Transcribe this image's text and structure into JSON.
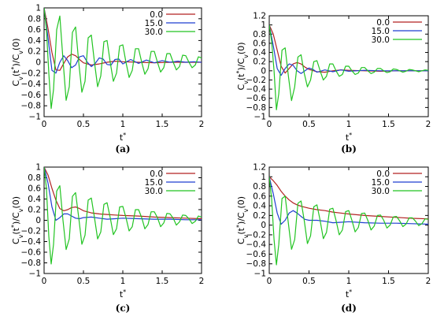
{
  "chart_data": [
    {
      "type": "line",
      "caption": "(a)",
      "xlabel": "t*",
      "ylabel": "Cv(t*)/Cv(0)",
      "xlim": [
        0,
        2
      ],
      "ylim": [
        -1,
        1
      ],
      "xticks": [
        "0",
        "0.5",
        "1",
        "1.5",
        "2"
      ],
      "yticks": [
        "−1",
        "−0.8",
        "−0.6",
        "−0.4",
        "−0.2",
        "0",
        "0.2",
        "0.4",
        "0.6",
        "0.8",
        "1"
      ],
      "xtick_values": [
        0,
        0.5,
        1,
        1.5,
        2
      ],
      "ytick_values": [
        -1,
        -0.8,
        -0.6,
        -0.4,
        -0.2,
        0,
        0.2,
        0.4,
        0.6,
        0.8,
        1
      ],
      "legend_position": "top-right",
      "series": [
        {
          "name": "0.0",
          "color": "#b22222",
          "x": [
            0,
            0.05,
            0.1,
            0.15,
            0.2,
            0.25,
            0.3,
            0.35,
            0.4,
            0.45,
            0.5,
            0.6,
            0.7,
            0.8,
            0.9,
            1.0,
            1.2,
            1.4,
            1.6,
            1.8,
            2.0
          ],
          "y": [
            1,
            0.62,
            0.18,
            -0.14,
            -0.15,
            -0.02,
            0.1,
            0.15,
            0.12,
            0.05,
            -0.01,
            -0.05,
            -0.03,
            0.0,
            0.02,
            0.01,
            0.0,
            -0.01,
            0.0,
            0.0,
            0.0
          ]
        },
        {
          "name": "15.0",
          "color": "#1f3fd0",
          "x": [
            0,
            0.05,
            0.1,
            0.15,
            0.2,
            0.25,
            0.3,
            0.35,
            0.4,
            0.45,
            0.5,
            0.55,
            0.6,
            0.65,
            0.7,
            0.75,
            0.8,
            0.85,
            0.9,
            0.95,
            1.0,
            1.1,
            1.2,
            1.3,
            1.4,
            1.5,
            1.6,
            1.7,
            1.8,
            1.9,
            2.0
          ],
          "y": [
            1,
            0.45,
            -0.15,
            -0.2,
            0.0,
            0.12,
            0.03,
            -0.1,
            -0.05,
            0.1,
            0.12,
            0.0,
            -0.08,
            -0.02,
            0.08,
            0.06,
            -0.04,
            -0.05,
            0.05,
            0.06,
            -0.03,
            0.05,
            -0.02,
            0.04,
            -0.01,
            0.03,
            0.0,
            0.02,
            0.0,
            0.01,
            0.0
          ]
        },
        {
          "name": "30.0",
          "color": "#22c422",
          "x": [
            0,
            0.03,
            0.06,
            0.09,
            0.12,
            0.16,
            0.2,
            0.24,
            0.28,
            0.32,
            0.36,
            0.4,
            0.44,
            0.48,
            0.52,
            0.56,
            0.6,
            0.64,
            0.68,
            0.72,
            0.76,
            0.8,
            0.84,
            0.88,
            0.92,
            0.96,
            1.0,
            1.04,
            1.08,
            1.12,
            1.16,
            1.2,
            1.24,
            1.28,
            1.32,
            1.36,
            1.4,
            1.44,
            1.48,
            1.52,
            1.56,
            1.6,
            1.64,
            1.68,
            1.72,
            1.76,
            1.8,
            1.84,
            1.88,
            1.92,
            1.96,
            2.0
          ],
          "y": [
            1,
            0.6,
            -0.2,
            -0.85,
            -0.5,
            0.6,
            0.85,
            0.05,
            -0.7,
            -0.45,
            0.55,
            0.65,
            0.0,
            -0.55,
            -0.35,
            0.45,
            0.5,
            0.0,
            -0.45,
            -0.25,
            0.38,
            0.4,
            0.0,
            -0.35,
            -0.2,
            0.3,
            0.32,
            0.0,
            -0.28,
            -0.15,
            0.25,
            0.25,
            0.0,
            -0.22,
            -0.12,
            0.2,
            0.2,
            0.0,
            -0.18,
            -0.1,
            0.16,
            0.16,
            0.0,
            -0.14,
            -0.08,
            0.13,
            0.12,
            0.0,
            -0.1,
            -0.05,
            0.1,
            0.08
          ]
        }
      ]
    },
    {
      "type": "line",
      "caption": "(b)",
      "xlabel": "t*",
      "ylabel": "Cv(t*)/Cv(0)",
      "xlim": [
        0,
        2
      ],
      "ylim": [
        -1,
        1.2
      ],
      "xticks": [
        "0",
        "0.5",
        "1",
        "1.5",
        "2"
      ],
      "yticks": [
        "−1",
        "−0.8",
        "−0.6",
        "−0.4",
        "−0.2",
        "0",
        "0.2",
        "0.4",
        "0.6",
        "0.8",
        "1",
        "1.2"
      ],
      "xtick_values": [
        0,
        0.5,
        1,
        1.5,
        2
      ],
      "ytick_values": [
        -1,
        -0.8,
        -0.6,
        -0.4,
        -0.2,
        0,
        0.2,
        0.4,
        0.6,
        0.8,
        1,
        1.2
      ],
      "legend_position": "top-right",
      "series": [
        {
          "name": "0.0",
          "color": "#b22222",
          "x": [
            0,
            0.05,
            0.1,
            0.15,
            0.2,
            0.25,
            0.3,
            0.35,
            0.4,
            0.45,
            0.5,
            0.6,
            0.7,
            0.8,
            0.9,
            1.0,
            1.2,
            1.4,
            1.6,
            1.8,
            2.0
          ],
          "y": [
            1,
            0.8,
            0.45,
            0.1,
            -0.05,
            0.05,
            0.15,
            0.18,
            0.15,
            0.08,
            0.03,
            -0.02,
            -0.03,
            0.0,
            0.02,
            0.01,
            0.0,
            -0.01,
            0.0,
            0.0,
            0.0
          ]
        },
        {
          "name": "15.0",
          "color": "#1f3fd0",
          "x": [
            0,
            0.05,
            0.1,
            0.15,
            0.2,
            0.25,
            0.3,
            0.35,
            0.4,
            0.45,
            0.5,
            0.55,
            0.6,
            0.7,
            0.8,
            0.9,
            1.0,
            1.2,
            1.4,
            1.6,
            1.8,
            2.0
          ],
          "y": [
            1,
            0.55,
            0.05,
            -0.1,
            0.05,
            0.15,
            0.12,
            0.0,
            -0.06,
            0.0,
            0.06,
            0.03,
            -0.03,
            0.02,
            -0.02,
            0.02,
            -0.01,
            0.01,
            0.0,
            0.0,
            0.0,
            0.0
          ]
        },
        {
          "name": "30.0",
          "color": "#22c422",
          "x": [
            0,
            0.03,
            0.06,
            0.09,
            0.12,
            0.16,
            0.2,
            0.24,
            0.28,
            0.32,
            0.36,
            0.4,
            0.44,
            0.48,
            0.52,
            0.56,
            0.6,
            0.64,
            0.68,
            0.72,
            0.76,
            0.8,
            0.84,
            0.88,
            0.92,
            0.96,
            1.0,
            1.04,
            1.08,
            1.12,
            1.16,
            1.2,
            1.24,
            1.28,
            1.32,
            1.36,
            1.4,
            1.44,
            1.48,
            1.52,
            1.56,
            1.6,
            1.64,
            1.68,
            1.72,
            1.76,
            1.8,
            1.84,
            1.88,
            1.92,
            1.96,
            2.0
          ],
          "y": [
            1,
            0.65,
            0.0,
            -0.85,
            -0.5,
            0.45,
            0.5,
            -0.1,
            -0.65,
            -0.35,
            0.3,
            0.35,
            -0.05,
            -0.35,
            -0.2,
            0.2,
            0.22,
            0.0,
            -0.2,
            -0.12,
            0.15,
            0.15,
            0.0,
            -0.12,
            -0.08,
            0.1,
            0.1,
            0.0,
            -0.08,
            -0.05,
            0.07,
            0.07,
            0.0,
            -0.06,
            -0.03,
            0.05,
            0.05,
            0.0,
            -0.04,
            -0.02,
            0.04,
            0.03,
            0.0,
            -0.03,
            -0.01,
            0.03,
            0.02,
            0.0,
            -0.02,
            0.0,
            0.02,
            0.01
          ]
        }
      ]
    },
    {
      "type": "line",
      "caption": "(c)",
      "xlabel": "t*",
      "ylabel": "Cv(t*)/Cv(0)",
      "xlim": [
        0,
        2
      ],
      "ylim": [
        -1,
        1
      ],
      "xticks": [
        "0",
        "0.5",
        "1",
        "1.5",
        "2"
      ],
      "yticks": [
        "−1",
        "−0.8",
        "−0.6",
        "−0.4",
        "−0.2",
        "0",
        "0.2",
        "0.4",
        "0.6",
        "0.8",
        "1"
      ],
      "xtick_values": [
        0,
        0.5,
        1,
        1.5,
        2
      ],
      "ytick_values": [
        -1,
        -0.8,
        -0.6,
        -0.4,
        -0.2,
        0,
        0.2,
        0.4,
        0.6,
        0.8,
        1
      ],
      "legend_position": "top-right",
      "series": [
        {
          "name": "0.0",
          "color": "#b22222",
          "x": [
            0,
            0.05,
            0.1,
            0.15,
            0.2,
            0.25,
            0.3,
            0.35,
            0.4,
            0.45,
            0.5,
            0.6,
            0.7,
            0.8,
            0.9,
            1.0,
            1.2,
            1.4,
            1.6,
            1.8,
            2.0
          ],
          "y": [
            1,
            0.85,
            0.6,
            0.38,
            0.22,
            0.18,
            0.2,
            0.24,
            0.25,
            0.22,
            0.18,
            0.14,
            0.12,
            0.11,
            0.1,
            0.09,
            0.08,
            0.06,
            0.05,
            0.04,
            0.03
          ]
        },
        {
          "name": "15.0",
          "color": "#1f3fd0",
          "x": [
            0,
            0.05,
            0.1,
            0.15,
            0.2,
            0.25,
            0.3,
            0.35,
            0.4,
            0.45,
            0.5,
            0.6,
            0.7,
            0.8,
            0.9,
            1.0,
            1.2,
            1.4,
            1.6,
            1.8,
            2.0
          ],
          "y": [
            1,
            0.7,
            0.25,
            0.0,
            0.05,
            0.12,
            0.12,
            0.08,
            0.04,
            0.03,
            0.05,
            0.06,
            0.04,
            0.02,
            0.03,
            0.04,
            0.03,
            0.02,
            0.02,
            0.01,
            0.01
          ]
        },
        {
          "name": "30.0",
          "color": "#22c422",
          "x": [
            0,
            0.03,
            0.06,
            0.09,
            0.12,
            0.16,
            0.2,
            0.24,
            0.28,
            0.32,
            0.36,
            0.4,
            0.44,
            0.48,
            0.52,
            0.56,
            0.6,
            0.64,
            0.68,
            0.72,
            0.76,
            0.8,
            0.84,
            0.88,
            0.92,
            0.96,
            1.0,
            1.04,
            1.08,
            1.12,
            1.16,
            1.2,
            1.24,
            1.28,
            1.32,
            1.36,
            1.4,
            1.44,
            1.48,
            1.52,
            1.56,
            1.6,
            1.64,
            1.68,
            1.72,
            1.76,
            1.8,
            1.84,
            1.88,
            1.92,
            1.96,
            2.0
          ],
          "y": [
            1,
            0.6,
            -0.3,
            -0.82,
            -0.45,
            0.55,
            0.65,
            0.0,
            -0.55,
            -0.35,
            0.45,
            0.52,
            0.05,
            -0.45,
            -0.28,
            0.38,
            0.42,
            0.05,
            -0.35,
            -0.22,
            0.3,
            0.33,
            0.05,
            -0.27,
            -0.16,
            0.25,
            0.26,
            0.05,
            -0.2,
            -0.12,
            0.2,
            0.2,
            0.05,
            -0.16,
            -0.08,
            0.16,
            0.16,
            0.05,
            -0.12,
            -0.05,
            0.13,
            0.12,
            0.04,
            -0.09,
            -0.03,
            0.1,
            0.09,
            0.03,
            -0.06,
            -0.02,
            0.08,
            0.06
          ]
        }
      ]
    },
    {
      "type": "line",
      "caption": "(d)",
      "xlabel": "t*",
      "ylabel": "Cv(t*)/Cv(0)",
      "xlim": [
        0,
        2
      ],
      "ylim": [
        -1,
        1.2
      ],
      "xticks": [
        "0",
        "0.5",
        "1",
        "1.5",
        "2"
      ],
      "yticks": [
        "−1",
        "−0.8",
        "−0.6",
        "−0.4",
        "−0.2",
        "0",
        "0.2",
        "0.4",
        "0.6",
        "0.8",
        "1",
        "1.2"
      ],
      "xtick_values": [
        0,
        0.5,
        1,
        1.5,
        2
      ],
      "ytick_values": [
        -1,
        -0.8,
        -0.6,
        -0.4,
        -0.2,
        0,
        0.2,
        0.4,
        0.6,
        0.8,
        1,
        1.2
      ],
      "legend_position": "top-right",
      "series": [
        {
          "name": "0.0",
          "color": "#b22222",
          "x": [
            0,
            0.05,
            0.1,
            0.15,
            0.2,
            0.25,
            0.3,
            0.35,
            0.4,
            0.5,
            0.6,
            0.7,
            0.8,
            0.9,
            1.0,
            1.2,
            1.4,
            1.6,
            1.8,
            2.0
          ],
          "y": [
            1,
            0.92,
            0.82,
            0.7,
            0.6,
            0.52,
            0.46,
            0.42,
            0.39,
            0.35,
            0.32,
            0.3,
            0.27,
            0.25,
            0.23,
            0.2,
            0.18,
            0.16,
            0.14,
            0.13
          ]
        },
        {
          "name": "15.0",
          "color": "#1f3fd0",
          "x": [
            0,
            0.05,
            0.1,
            0.15,
            0.2,
            0.25,
            0.3,
            0.35,
            0.4,
            0.45,
            0.5,
            0.6,
            0.7,
            0.8,
            0.9,
            1.0,
            1.2,
            1.4,
            1.6,
            1.8,
            2.0
          ],
          "y": [
            1,
            0.65,
            0.25,
            0.02,
            0.1,
            0.25,
            0.3,
            0.25,
            0.18,
            0.12,
            0.1,
            0.1,
            0.08,
            0.05,
            0.06,
            0.07,
            0.05,
            0.04,
            0.04,
            0.03,
            0.02
          ]
        },
        {
          "name": "30.0",
          "color": "#22c422",
          "x": [
            0,
            0.03,
            0.06,
            0.09,
            0.12,
            0.16,
            0.2,
            0.24,
            0.28,
            0.32,
            0.36,
            0.4,
            0.44,
            0.48,
            0.52,
            0.56,
            0.6,
            0.64,
            0.68,
            0.72,
            0.76,
            0.8,
            0.84,
            0.88,
            0.92,
            0.96,
            1.0,
            1.04,
            1.08,
            1.12,
            1.16,
            1.2,
            1.24,
            1.28,
            1.32,
            1.36,
            1.4,
            1.44,
            1.48,
            1.52,
            1.56,
            1.6,
            1.64,
            1.68,
            1.72,
            1.76,
            1.8,
            1.84,
            1.88,
            1.92,
            1.96,
            2.0
          ],
          "y": [
            1,
            0.55,
            -0.3,
            -0.82,
            -0.4,
            0.55,
            0.6,
            0.05,
            -0.5,
            -0.3,
            0.45,
            0.5,
            0.1,
            -0.38,
            -0.22,
            0.38,
            0.42,
            0.1,
            -0.28,
            -0.15,
            0.33,
            0.35,
            0.1,
            -0.2,
            -0.1,
            0.28,
            0.3,
            0.1,
            -0.14,
            -0.05,
            0.24,
            0.25,
            0.1,
            -0.1,
            -0.02,
            0.2,
            0.21,
            0.1,
            -0.06,
            0.0,
            0.17,
            0.18,
            0.09,
            -0.03,
            0.02,
            0.15,
            0.15,
            0.08,
            -0.01,
            0.03,
            0.13,
            0.12
          ]
        }
      ]
    }
  ]
}
